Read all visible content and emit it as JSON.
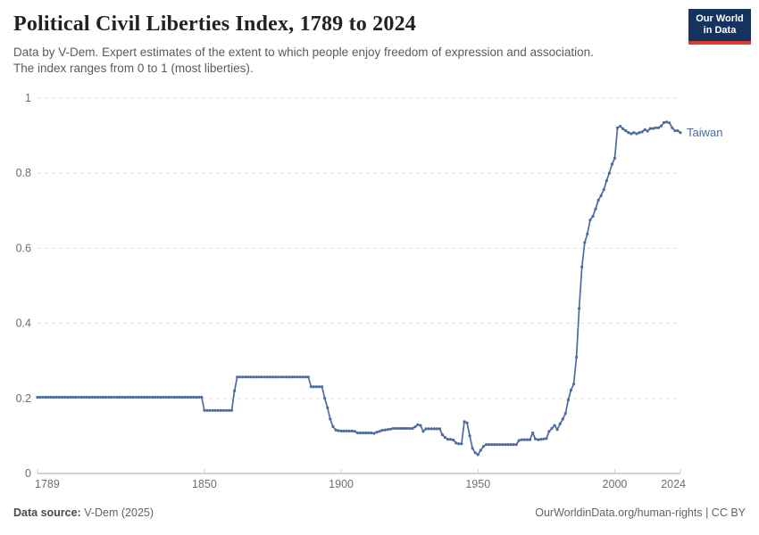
{
  "header": {
    "title": "Political Civil Liberties Index, 1789 to 2024",
    "subtitle_line1": "Data by V-Dem. Expert estimates of the extent to which people enjoy freedom of expression and association.",
    "subtitle_line2": "The index ranges from 0 to 1 (most liberties).",
    "logo_line1": "Our World",
    "logo_line2": "in Data",
    "logo_bg_color": "#15335e",
    "logo_accent_color": "#dc3c2c"
  },
  "chart_data": {
    "type": "line",
    "title": "Political Civil Liberties Index, 1789 to 2024",
    "xlabel": "",
    "ylabel": "",
    "xlim": [
      1789,
      2024
    ],
    "ylim": [
      0,
      1
    ],
    "xticks": [
      1789,
      1850,
      1900,
      1950,
      2000,
      2024
    ],
    "yticks": [
      0,
      0.2,
      0.4,
      0.6,
      0.8,
      1
    ],
    "grid": "horizontal-dashed",
    "legend_position": "end-of-line",
    "line_color": "#4c6ba0",
    "grid_color": "#dedede",
    "axis_color": "#a5a5a5",
    "series": [
      {
        "name": "Taiwan",
        "color": "#4c6ba0",
        "start_year": 1789,
        "values": [
          0.203,
          0.203,
          0.203,
          0.203,
          0.203,
          0.203,
          0.203,
          0.203,
          0.203,
          0.203,
          0.203,
          0.203,
          0.203,
          0.203,
          0.203,
          0.203,
          0.203,
          0.203,
          0.203,
          0.203,
          0.203,
          0.203,
          0.203,
          0.203,
          0.203,
          0.203,
          0.203,
          0.203,
          0.203,
          0.203,
          0.203,
          0.203,
          0.203,
          0.203,
          0.203,
          0.203,
          0.203,
          0.203,
          0.203,
          0.203,
          0.203,
          0.203,
          0.203,
          0.203,
          0.203,
          0.203,
          0.203,
          0.203,
          0.203,
          0.203,
          0.203,
          0.203,
          0.203,
          0.203,
          0.203,
          0.203,
          0.203,
          0.203,
          0.203,
          0.203,
          0.203,
          0.168,
          0.168,
          0.168,
          0.168,
          0.168,
          0.168,
          0.168,
          0.168,
          0.168,
          0.168,
          0.168,
          0.22,
          0.257,
          0.257,
          0.257,
          0.257,
          0.257,
          0.257,
          0.257,
          0.257,
          0.257,
          0.257,
          0.257,
          0.257,
          0.257,
          0.257,
          0.257,
          0.257,
          0.257,
          0.257,
          0.257,
          0.257,
          0.257,
          0.257,
          0.257,
          0.257,
          0.257,
          0.257,
          0.257,
          0.231,
          0.231,
          0.231,
          0.231,
          0.231,
          0.2,
          0.175,
          0.145,
          0.125,
          0.116,
          0.114,
          0.113,
          0.113,
          0.113,
          0.113,
          0.113,
          0.112,
          0.108,
          0.108,
          0.108,
          0.108,
          0.108,
          0.108,
          0.107,
          0.11,
          0.112,
          0.115,
          0.116,
          0.117,
          0.118,
          0.12,
          0.12,
          0.12,
          0.12,
          0.12,
          0.12,
          0.12,
          0.12,
          0.124,
          0.13,
          0.128,
          0.112,
          0.119,
          0.119,
          0.119,
          0.119,
          0.119,
          0.119,
          0.103,
          0.096,
          0.091,
          0.091,
          0.089,
          0.081,
          0.079,
          0.079,
          0.138,
          0.135,
          0.1,
          0.067,
          0.055,
          0.05,
          0.062,
          0.072,
          0.077,
          0.077,
          0.077,
          0.077,
          0.077,
          0.077,
          0.077,
          0.077,
          0.077,
          0.077,
          0.077,
          0.077,
          0.088,
          0.09,
          0.09,
          0.09,
          0.09,
          0.108,
          0.092,
          0.09,
          0.091,
          0.092,
          0.093,
          0.112,
          0.12,
          0.128,
          0.117,
          0.132,
          0.145,
          0.16,
          0.196,
          0.222,
          0.238,
          0.31,
          0.44,
          0.55,
          0.615,
          0.638,
          0.675,
          0.685,
          0.705,
          0.728,
          0.74,
          0.756,
          0.78,
          0.8,
          0.824,
          0.84,
          0.921,
          0.925,
          0.918,
          0.913,
          0.908,
          0.905,
          0.908,
          0.905,
          0.908,
          0.91,
          0.916,
          0.912,
          0.919,
          0.919,
          0.921,
          0.921,
          0.926,
          0.935,
          0.936,
          0.934,
          0.921,
          0.913,
          0.913,
          0.908
        ]
      }
    ]
  },
  "footer": {
    "source_label": "Data source:",
    "source_value": " V-Dem (2025)",
    "credit": "OurWorldinData.org/human-rights | CC BY"
  }
}
